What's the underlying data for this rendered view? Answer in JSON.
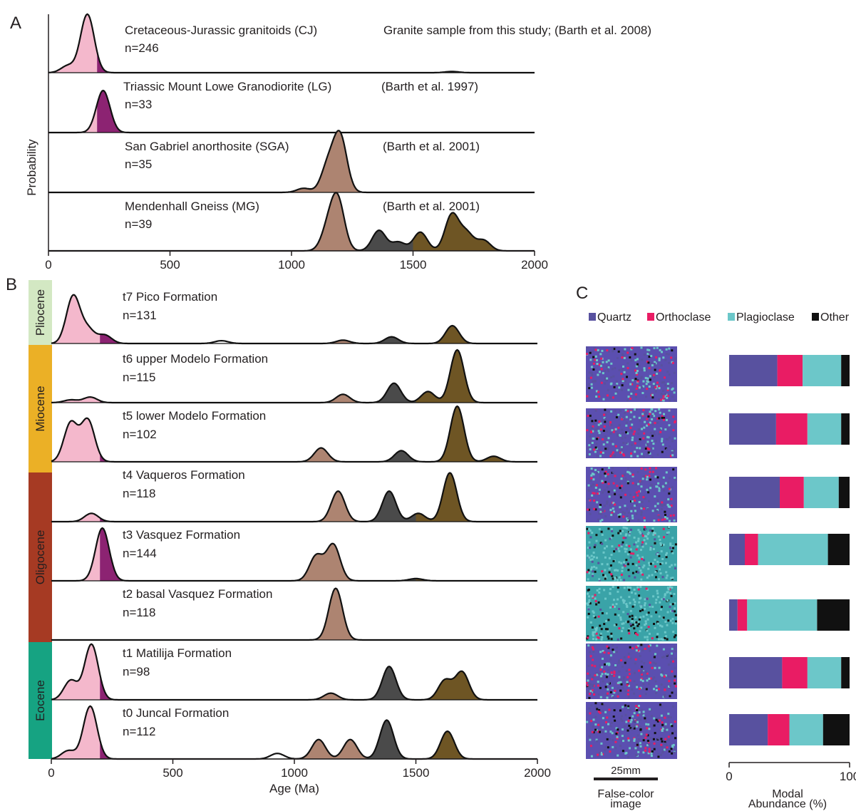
{
  "colors": {
    "pink": "#f4b8cc",
    "purple": "#8c2372",
    "tan": "#ad8471",
    "darkgray": "#4a4a4a",
    "olive": "#6e5524",
    "pliocene": "#d3e8c3",
    "miocene": "#ebb026",
    "oligocene": "#a63a23",
    "eocene": "#16a382",
    "quartz": "#58519f",
    "orthoclase": "#e91c64",
    "plagioclase": "#6cc7c9",
    "other": "#111111"
  },
  "panel_a": {
    "letter": "A",
    "ylabel": "Probability",
    "ticks": [
      "0",
      "500",
      "1000",
      "1500",
      "2000"
    ],
    "rows": [
      {
        "title": "Cretaceous-Jurassic granitoids (CJ)",
        "n": "n=246",
        "source": "Granite sample from this study; (Barth et al. 2008)"
      },
      {
        "title": "Triassic Mount Lowe Granodiorite (LG)",
        "n": "n=33",
        "source": "(Barth et al. 1997)"
      },
      {
        "title": "San Gabriel anorthosite (SGA)",
        "n": "n=35",
        "source": "(Barth et al. 2001)"
      },
      {
        "title": "Mendenhall Gneiss (MG)",
        "n": "n=39",
        "source": "(Barth et al. 2001)"
      }
    ]
  },
  "panel_b": {
    "letter": "B",
    "xlabel": "Age (Ma)",
    "ticks": [
      "0",
      "500",
      "1000",
      "1500",
      "2000"
    ],
    "epochs": [
      "Pliocene",
      "Miocene",
      "Oligocene",
      "Eocene"
    ],
    "rows": [
      {
        "title": "t7 Pico Formation",
        "n": "n=131"
      },
      {
        "title": "t6 upper Modelo Formation",
        "n": "n=115"
      },
      {
        "title": "t5 lower Modelo Formation",
        "n": "n=102"
      },
      {
        "title": "t4 Vaqueros Formation",
        "n": "n=118"
      },
      {
        "title": "t3 Vasquez Formation",
        "n": "n=144"
      },
      {
        "title": "t2 basal Vasquez Formation",
        "n": "n=118"
      },
      {
        "title": "t1 Matilija Formation",
        "n": "n=98"
      },
      {
        "title": "t0 Juncal Formation",
        "n": "n=112"
      }
    ]
  },
  "panel_c": {
    "letter": "C",
    "legend": [
      "Quartz",
      "Orthoclase",
      "Plagioclase",
      "Other"
    ],
    "scale_label": "25mm",
    "image_label_1": "False-color",
    "image_label_2": "image",
    "bar_label_1": "Modal",
    "bar_label_2": "Abundance (%)",
    "ticks": [
      "0",
      "100"
    ]
  },
  "chart_data": [
    {
      "type": "area",
      "panel": "A",
      "ylabel": "Probability",
      "xlim": [
        0,
        2000
      ],
      "age_bins": [
        {
          "range": [
            0,
            200
          ],
          "color": "pink"
        },
        {
          "range": [
            200,
            300
          ],
          "color": "purple"
        },
        {
          "range": [
            1000,
            1300
          ],
          "color": "tan"
        },
        {
          "range": [
            1300,
            1500
          ],
          "color": "darkgray"
        },
        {
          "range": [
            1500,
            2000
          ],
          "color": "olive"
        }
      ],
      "series": [
        {
          "name": "Cretaceous-Jurassic granitoids (CJ)",
          "peaks": [
            {
              "age": 80,
              "height": 0.12
            },
            {
              "age": 160,
              "height": 1.0
            },
            {
              "age": 1660,
              "height": 0.02
            }
          ]
        },
        {
          "name": "Triassic Mount Lowe Granodiorite (LG)",
          "peaks": [
            {
              "age": 225,
              "height": 0.72
            }
          ]
        },
        {
          "name": "San Gabriel anorthosite (SGA)",
          "peaks": [
            {
              "age": 1050,
              "height": 0.07
            },
            {
              "age": 1150,
              "height": 0.45
            },
            {
              "age": 1200,
              "height": 0.95
            }
          ]
        },
        {
          "name": "Mendenhall Gneiss (MG)",
          "peaks": [
            {
              "age": 1150,
              "height": 0.35
            },
            {
              "age": 1190,
              "height": 0.85
            },
            {
              "age": 1360,
              "height": 0.35
            },
            {
              "age": 1440,
              "height": 0.15
            },
            {
              "age": 1530,
              "height": 0.32
            },
            {
              "age": 1660,
              "height": 0.62
            },
            {
              "age": 1720,
              "height": 0.3
            },
            {
              "age": 1790,
              "height": 0.18
            }
          ]
        }
      ]
    },
    {
      "type": "area",
      "panel": "B",
      "xlabel": "Age (Ma)",
      "xlim": [
        0,
        2000
      ],
      "series": [
        {
          "name": "t7 Pico Formation",
          "peaks": [
            {
              "age": 90,
              "height": 0.85
            },
            {
              "age": 150,
              "height": 0.25
            },
            {
              "age": 220,
              "height": 0.15
            },
            {
              "age": 700,
              "height": 0.05
            },
            {
              "age": 1200,
              "height": 0.06
            },
            {
              "age": 1400,
              "height": 0.12
            },
            {
              "age": 1650,
              "height": 0.32
            }
          ]
        },
        {
          "name": "t6 upper Modelo Formation",
          "peaks": [
            {
              "age": 80,
              "height": 0.05
            },
            {
              "age": 160,
              "height": 0.1
            },
            {
              "age": 1200,
              "height": 0.15
            },
            {
              "age": 1410,
              "height": 0.35
            },
            {
              "age": 1550,
              "height": 0.2
            },
            {
              "age": 1670,
              "height": 0.95
            }
          ]
        },
        {
          "name": "t5 lower Modelo Formation",
          "peaks": [
            {
              "age": 80,
              "height": 0.7
            },
            {
              "age": 150,
              "height": 0.75
            },
            {
              "age": 1110,
              "height": 0.25
            },
            {
              "age": 1440,
              "height": 0.2
            },
            {
              "age": 1670,
              "height": 1.0
            },
            {
              "age": 1820,
              "height": 0.1
            }
          ]
        },
        {
          "name": "t4 Vaqueros Formation",
          "peaks": [
            {
              "age": 165,
              "height": 0.15
            },
            {
              "age": 1180,
              "height": 0.55
            },
            {
              "age": 1390,
              "height": 0.55
            },
            {
              "age": 1510,
              "height": 0.15
            },
            {
              "age": 1640,
              "height": 0.88
            }
          ]
        },
        {
          "name": "t3 Vasquez Formation",
          "peaks": [
            {
              "age": 210,
              "height": 0.95
            },
            {
              "age": 1090,
              "height": 0.45
            },
            {
              "age": 1160,
              "height": 0.65
            },
            {
              "age": 1500,
              "height": 0.04
            }
          ]
        },
        {
          "name": "t2 basal Vasquez Formation",
          "peaks": [
            {
              "age": 1170,
              "height": 0.93
            }
          ]
        },
        {
          "name": "t1 Matilija Formation",
          "peaks": [
            {
              "age": 80,
              "height": 0.35
            },
            {
              "age": 165,
              "height": 1.0
            },
            {
              "age": 1150,
              "height": 0.12
            },
            {
              "age": 1390,
              "height": 0.6
            },
            {
              "age": 1620,
              "height": 0.35
            },
            {
              "age": 1690,
              "height": 0.5
            }
          ]
        },
        {
          "name": "t0 Juncal Formation",
          "peaks": [
            {
              "age": 70,
              "height": 0.15
            },
            {
              "age": 160,
              "height": 0.95
            },
            {
              "age": 930,
              "height": 0.1
            },
            {
              "age": 1100,
              "height": 0.35
            },
            {
              "age": 1230,
              "height": 0.35
            },
            {
              "age": 1380,
              "height": 0.7
            },
            {
              "age": 1630,
              "height": 0.5
            }
          ]
        }
      ]
    },
    {
      "type": "bar",
      "panel": "C",
      "stacked": true,
      "orientation": "horizontal",
      "xlabel": "Modal Abundance (%)",
      "xlim": [
        0,
        100
      ],
      "series": [
        {
          "name": "Quartz",
          "color": "#58519f",
          "values": [
            40,
            39,
            42,
            13,
            7,
            44,
            32
          ]
        },
        {
          "name": "Orthoclase",
          "color": "#e91c64",
          "values": [
            21,
            26,
            20,
            11,
            8,
            21,
            18
          ]
        },
        {
          "name": "Plagioclase",
          "color": "#6cc7c9",
          "values": [
            32,
            28,
            29,
            58,
            58,
            28,
            28
          ]
        },
        {
          "name": "Other",
          "color": "#111111",
          "values": [
            7,
            7,
            9,
            18,
            27,
            7,
            22
          ]
        }
      ]
    }
  ]
}
